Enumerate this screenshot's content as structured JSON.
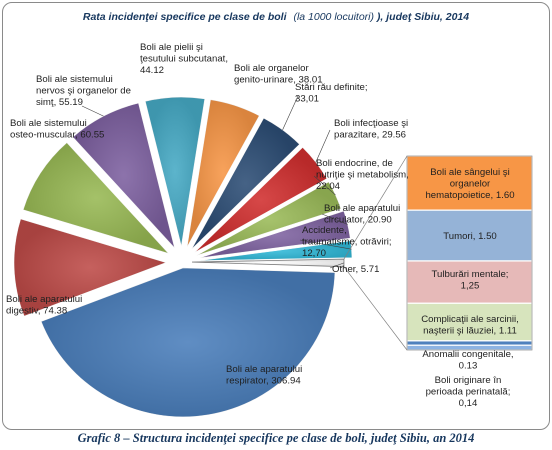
{
  "chart_data": {
    "type": "pie",
    "variant": "exploded pie with bar-of-pie",
    "title": {
      "prefix": "Rata incidenţei specifice pe clase de boli",
      "unit": "(la 1000 locuitori)",
      "suffix": "), judeţ Sibiu, 2014"
    },
    "slices": [
      {
        "label_lines": [
          "Boli ale aparatului",
          "respirator, 306.94"
        ],
        "value": 306.94,
        "color": "#4a7ebb"
      },
      {
        "label_lines": [
          "Boli ale aparatului",
          "digestiv, 74.38"
        ],
        "value": 74.38,
        "color": "#be4b48"
      },
      {
        "label_lines": [
          "Boli ale sistemului",
          "osteo-muscular, 60.55"
        ],
        "value": 60.55,
        "color": "#98b954"
      },
      {
        "label_lines": [
          "Boli ale sistemului",
          "nervos şi organelor de",
          "simţ, 55.19"
        ],
        "value": 55.19,
        "color": "#7d60a0"
      },
      {
        "label_lines": [
          "Boli ale pielii şi",
          "ţesutului subcutanat,",
          "44.12"
        ],
        "value": 44.12,
        "color": "#46aac5"
      },
      {
        "label_lines": [
          "Boli ale organelor",
          "genito-urinare, 38.01"
        ],
        "value": 38.01,
        "color": "#f79646"
      },
      {
        "label_lines": [
          "Stări rău definite;",
          "33,01"
        ],
        "value": 33.01,
        "color": "#2c4d75"
      },
      {
        "label_lines": [
          "Boli infecţioase şi",
          "parazitare, 29.56"
        ],
        "value": 29.56,
        "color": "#d12f2f"
      },
      {
        "label_lines": [
          "Boli endocrine, de",
          "nutriţie şi metabolism,",
          "22.04"
        ],
        "value": 22.04,
        "color": "#9bbb59"
      },
      {
        "label_lines": [
          "Boli ale aparatului",
          "circulator, 20.90"
        ],
        "value": 20.9,
        "color": "#8064a2"
      },
      {
        "label_lines": [
          "Accidente,",
          "traumatisme, otrăviri;",
          "12,70"
        ],
        "value": 12.7,
        "color": "#31b9d8"
      },
      {
        "label_lines": [
          "Other, 5.71"
        ],
        "value": 5.71,
        "color": "#ffffff"
      }
    ],
    "other_breakdown": [
      {
        "label_lines": [
          "Boli ale sângelui şi",
          "organelor",
          "hematopoietice, 1.60"
        ],
        "value": 1.6,
        "color": "#f79646"
      },
      {
        "label_lines": [
          "Tumori, 1.50"
        ],
        "value": 1.5,
        "color": "#95b3d7"
      },
      {
        "label_lines": [
          "Tulburări mentale;",
          "1,25"
        ],
        "value": 1.25,
        "color": "#e6b9b8"
      },
      {
        "label_lines": [
          "Complicaţii ale sarcinii,",
          "naşterii şi lăuziei, 1.11"
        ],
        "value": 1.11,
        "color": "#d7e4bd"
      },
      {
        "label_lines": [
          "Anomalii congenitale,",
          "0.13"
        ],
        "value": 0.13,
        "color": "#4f81bd"
      },
      {
        "label_lines": [
          "Boli originare în",
          "perioada perinatală;",
          "0,14"
        ],
        "value": 0.14,
        "color": "#8db3e2"
      }
    ]
  },
  "caption": "Grafic 8 – Structura incidenţei specifice pe clase de boli, judeţ Sibiu, an 2014"
}
